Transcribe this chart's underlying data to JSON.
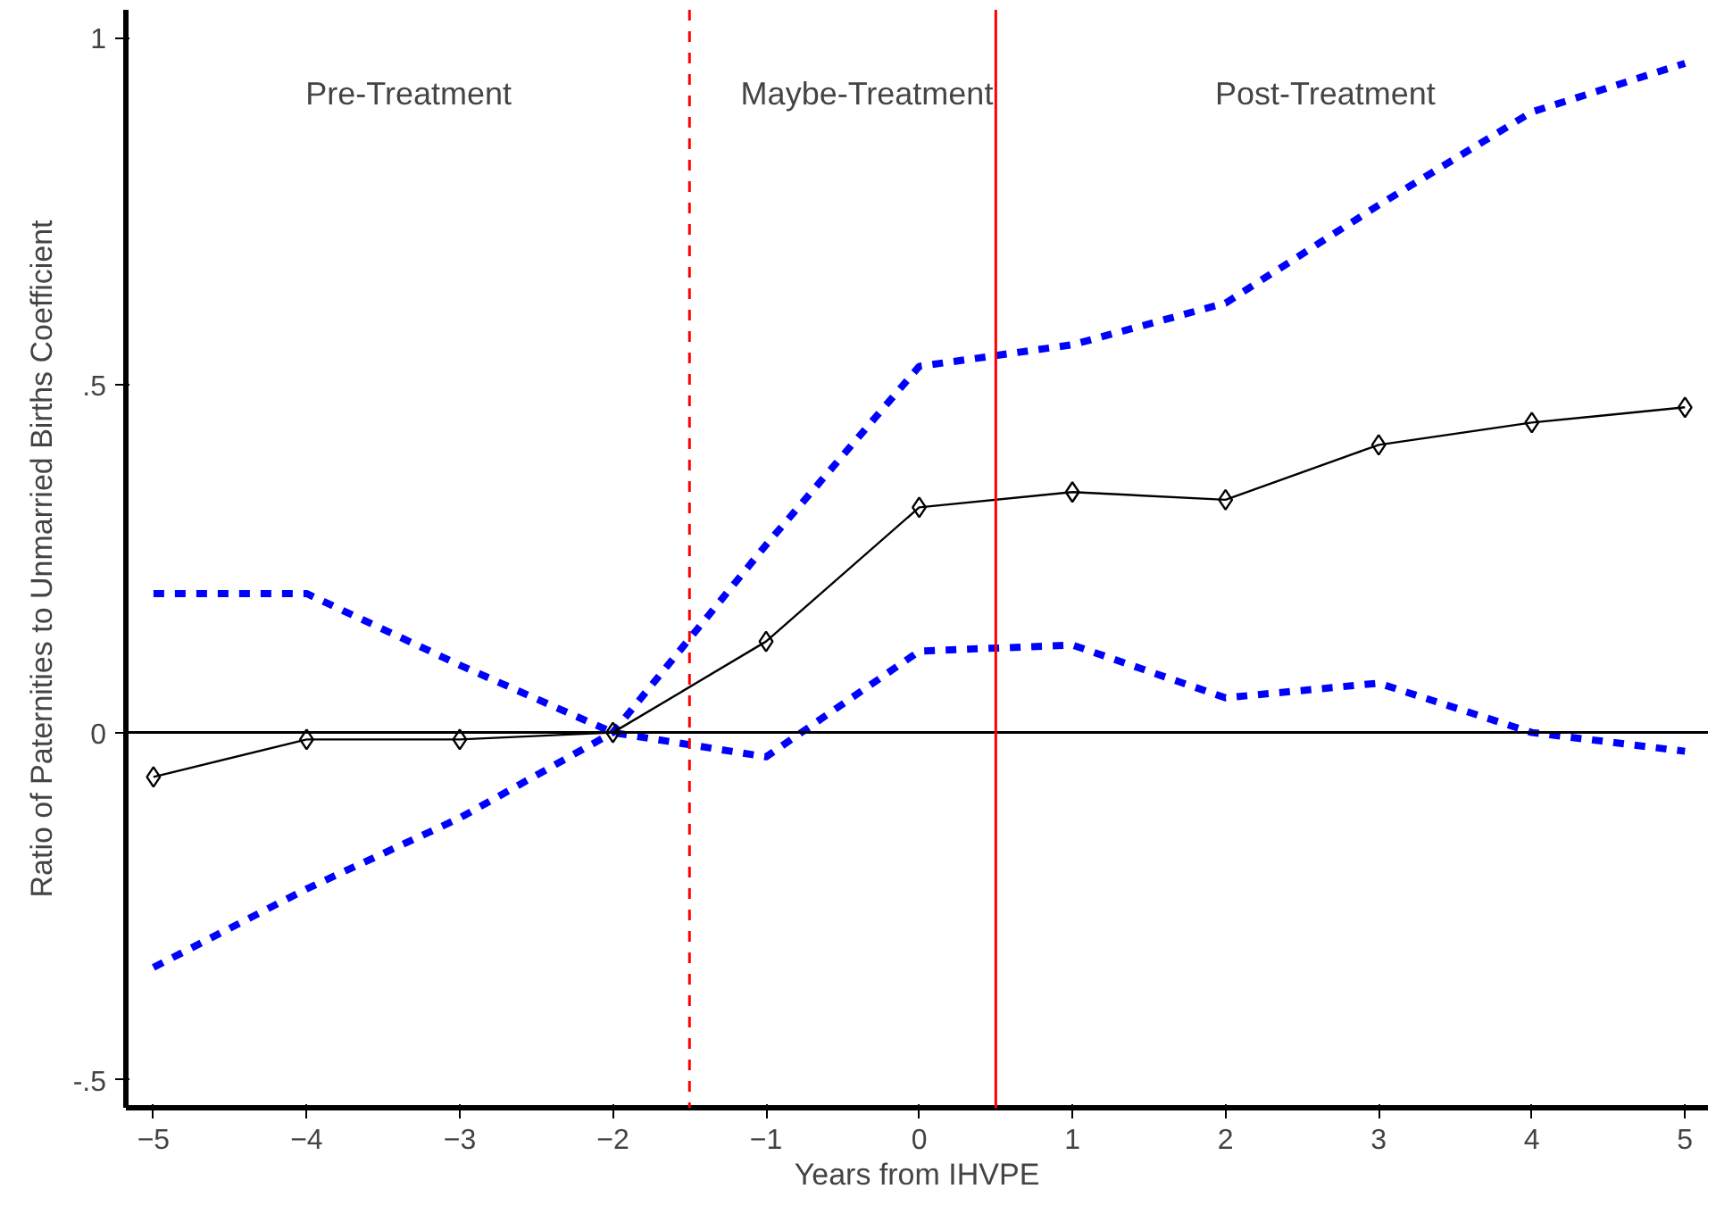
{
  "chart_data": {
    "type": "line",
    "xlabel": "Years from IHVPE",
    "ylabel": "Ratio of Paternities to Unmarried Births Coefficient",
    "x": [
      -5,
      -4,
      -3,
      -2,
      -1,
      0,
      1,
      2,
      3,
      4,
      5
    ],
    "series": [
      {
        "color": "#0000ff",
        "line_style": "dashed",
        "marker": "none",
        "values": [
          0.2,
          0.2,
          0.097,
          0,
          -0.035,
          0.117,
          0.126,
          0.05,
          0.071,
          0,
          -0.027
        ]
      },
      {
        "color": "#0000ff",
        "line_style": "dashed",
        "marker": "none",
        "values": [
          -0.338,
          -0.225,
          -0.123,
          0,
          0.27,
          0.527,
          0.558,
          0.618,
          0.759,
          0.893,
          0.963
        ]
      },
      {
        "color": "#000000",
        "line_style": "solid",
        "marker": "diamond",
        "values": [
          -0.064,
          -0.01,
          -0.01,
          0,
          0.131,
          0.324,
          0.346,
          0.335,
          0.414,
          0.446,
          0.468
        ]
      }
    ],
    "xlim": [
      -5.18,
      5.15
    ],
    "ylim": [
      -0.54,
      1.04
    ],
    "xticks": [
      -5,
      -4,
      -3,
      -2,
      -1,
      0,
      1,
      2,
      3,
      4,
      5
    ],
    "yticks": [
      {
        "value": -0.5,
        "label": "-.5"
      },
      0,
      {
        "value": 0.5,
        "label": ".5"
      },
      1
    ],
    "ref_lines": [
      {
        "axis": "y",
        "value": 0,
        "color": "#000000",
        "line_style": "solid"
      },
      {
        "axis": "x",
        "value": -1.5,
        "color": "#ff0000",
        "line_style": "dashed"
      },
      {
        "axis": "x",
        "value": 0.5,
        "color": "#ff0000",
        "line_style": "solid"
      }
    ],
    "annotations": [
      "Pre-Treatment",
      "Maybe-Treatment",
      "Post-Treatment"
    ],
    "grid": false
  }
}
